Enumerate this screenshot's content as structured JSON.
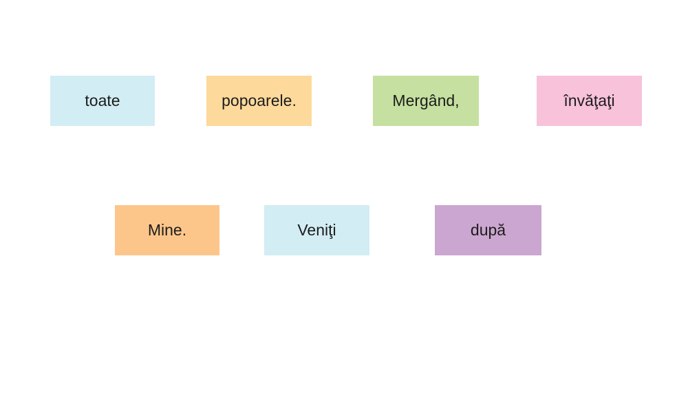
{
  "cards": [
    {
      "label": "toate",
      "color": "#d2edf4"
    },
    {
      "label": "popoarele.",
      "color": "#fdd99c"
    },
    {
      "label": "Mergând,",
      "color": "#c5e0a0"
    },
    {
      "label": "învăţaţi",
      "color": "#f7c2da"
    },
    {
      "label": "Mine.",
      "color": "#fcc68b"
    },
    {
      "label": "Veniţi",
      "color": "#d2edf4"
    },
    {
      "label": "după",
      "color": "#cba6d0"
    }
  ]
}
